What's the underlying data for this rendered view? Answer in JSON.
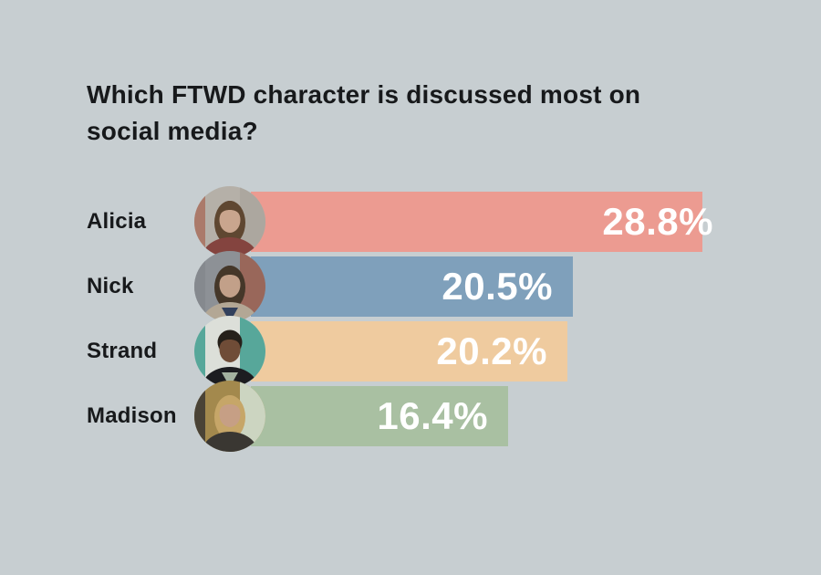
{
  "page": {
    "background": "#c7ced1"
  },
  "chart": {
    "title_lines": [
      "Which FTWD character is discussed most on",
      "social media?"
    ],
    "title_color": "#17191b",
    "category_label_color": "#17191b",
    "value_label_color": "#ffffff"
  },
  "chart_data": {
    "type": "bar",
    "orientation": "horizontal",
    "title": "Which FTWD character is discussed most on social media?",
    "categories": [
      "Alicia",
      "Nick",
      "Strand",
      "Madison"
    ],
    "values": [
      28.8,
      20.5,
      20.2,
      16.4
    ],
    "value_labels": [
      "28.8%",
      "20.5%",
      "20.2%",
      "16.4%"
    ],
    "unit": "%",
    "xlim": [
      0,
      30
    ],
    "grid": false,
    "legend": "none",
    "axes_visible": false,
    "bar_colors": [
      "#ec9b91",
      "#7fa0bb",
      "#efcb9f",
      "#a9c0a2"
    ],
    "avatars": [
      {
        "name": "avatar-alicia",
        "bg": "#b5b0a8",
        "bg2": "#aca79f",
        "accent": "#ab7a6a",
        "hair": "#5f4731",
        "skin": "#c9a58e",
        "shirt": "#84443f",
        "style": "long"
      },
      {
        "name": "avatar-nick",
        "bg": "#8d9196",
        "bg2": "#99675a",
        "accent": "#85898e",
        "hair": "#453729",
        "skin": "#c2a089",
        "shirt": "#b3a795",
        "collar": "#32405c",
        "style": "long"
      },
      {
        "name": "avatar-strand",
        "bg": "#dcdfd9",
        "bg2": "#57a79a",
        "accent": "#57a79a",
        "hair": "#26201a",
        "skin": "#6f4c37",
        "shirt": "#1c1d20",
        "collar": "#a3b29f",
        "style": "short"
      },
      {
        "name": "avatar-madison",
        "bg": "#a3894d",
        "bg2": "#ccd5c1",
        "accent": "#4a4336",
        "hair": "#c6a668",
        "skin": "#c69f85",
        "shirt": "#3a3732",
        "style": "long"
      }
    ]
  }
}
